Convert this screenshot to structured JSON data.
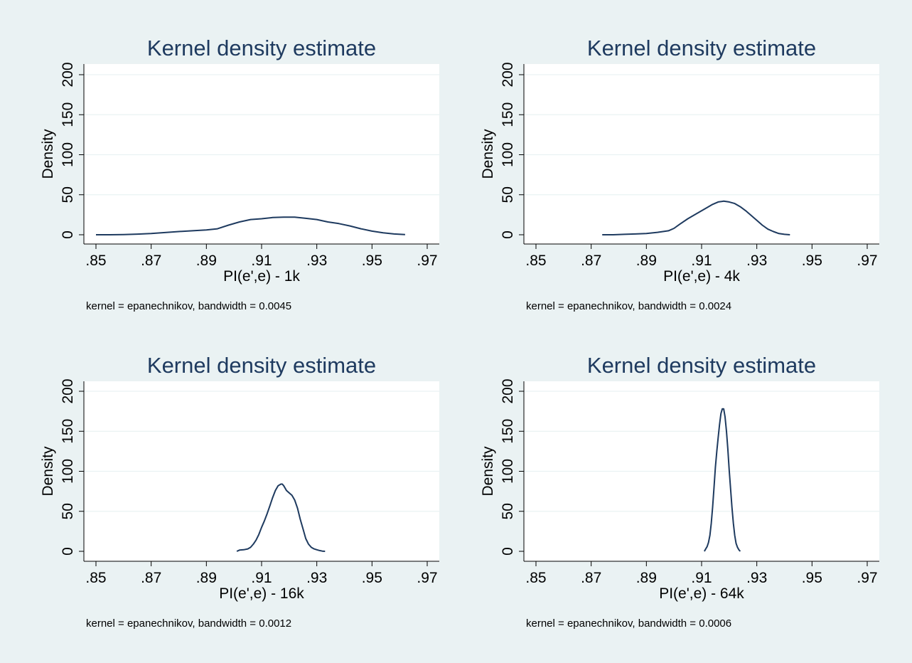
{
  "colors": {
    "background": "#eaf2f3",
    "plot_area": "#ffffff",
    "title": "#1e3a5f",
    "line": "#1e3a5f",
    "grid": "#eaf2f3",
    "text": "#000000"
  },
  "chart_data": [
    {
      "type": "line",
      "title": "Kernel density estimate",
      "xlabel": "PI(e',e) - 1k",
      "ylabel": "Density",
      "note": "kernel = epanechnikov, bandwidth = 0.0045",
      "xlim": [
        0.85,
        0.97
      ],
      "ylim": [
        0,
        200
      ],
      "xticks": [
        0.85,
        0.87,
        0.89,
        0.91,
        0.93,
        0.95,
        0.97
      ],
      "xtick_labels": [
        ".85",
        ".87",
        ".89",
        ".91",
        ".93",
        ".95",
        ".97"
      ],
      "yticks": [
        0,
        50,
        100,
        150,
        200
      ],
      "ytick_labels": [
        "0",
        "50",
        "100",
        "150",
        "200"
      ],
      "grid": true,
      "series": [
        {
          "x": [
            0.85,
            0.855,
            0.86,
            0.865,
            0.87,
            0.875,
            0.88,
            0.885,
            0.89,
            0.894,
            0.898,
            0.902,
            0.906,
            0.91,
            0.914,
            0.918,
            0.922,
            0.926,
            0.93,
            0.934,
            0.938,
            0.942,
            0.946,
            0.95,
            0.954,
            0.958,
            0.962
          ],
          "y": [
            0,
            0,
            0.3,
            0.8,
            1.5,
            2.8,
            4,
            5,
            6,
            7.5,
            12,
            16,
            19,
            20,
            21.5,
            22,
            22,
            20.5,
            19,
            16,
            14,
            11,
            7.5,
            4.5,
            2.5,
            1,
            0.3
          ]
        }
      ]
    },
    {
      "type": "line",
      "title": "Kernel density estimate",
      "xlabel": "PI(e',e) - 4k",
      "ylabel": "Density",
      "note": "kernel = epanechnikov, bandwidth = 0.0024",
      "xlim": [
        0.85,
        0.97
      ],
      "ylim": [
        0,
        200
      ],
      "xticks": [
        0.85,
        0.87,
        0.89,
        0.91,
        0.93,
        0.95,
        0.97
      ],
      "xtick_labels": [
        ".85",
        ".87",
        ".89",
        ".91",
        ".93",
        ".95",
        ".97"
      ],
      "yticks": [
        0,
        50,
        100,
        150,
        200
      ],
      "ytick_labels": [
        "0",
        "50",
        "100",
        "150",
        "200"
      ],
      "grid": true,
      "series": [
        {
          "x": [
            0.874,
            0.878,
            0.882,
            0.886,
            0.89,
            0.894,
            0.898,
            0.9,
            0.902,
            0.905,
            0.908,
            0.911,
            0.914,
            0.916,
            0.918,
            0.92,
            0.922,
            0.924,
            0.926,
            0.928,
            0.93,
            0.932,
            0.934,
            0.936,
            0.938,
            0.94,
            0.942
          ],
          "y": [
            0,
            0,
            0.5,
            1,
            1.5,
            3,
            5,
            8,
            13,
            20,
            26,
            32,
            38,
            41,
            42,
            41,
            39,
            35,
            30,
            24,
            18,
            12,
            7,
            4,
            1.5,
            0.5,
            0
          ]
        }
      ]
    },
    {
      "type": "line",
      "title": "Kernel density estimate",
      "xlabel": "PI(e',e) - 16k",
      "ylabel": "Density",
      "note": "kernel = epanechnikov, bandwidth = 0.0012",
      "xlim": [
        0.85,
        0.97
      ],
      "ylim": [
        0,
        200
      ],
      "xticks": [
        0.85,
        0.87,
        0.89,
        0.91,
        0.93,
        0.95,
        0.97
      ],
      "xtick_labels": [
        ".85",
        ".87",
        ".89",
        ".91",
        ".93",
        ".95",
        ".97"
      ],
      "yticks": [
        0,
        50,
        100,
        150,
        200
      ],
      "ytick_labels": [
        "0",
        "50",
        "100",
        "150",
        "200"
      ],
      "grid": true,
      "series": [
        {
          "x": [
            0.901,
            0.902,
            0.9035,
            0.905,
            0.906,
            0.907,
            0.908,
            0.909,
            0.91,
            0.911,
            0.912,
            0.913,
            0.914,
            0.915,
            0.916,
            0.917,
            0.9175,
            0.918,
            0.919,
            0.92,
            0.921,
            0.922,
            0.923,
            0.924,
            0.925,
            0.926,
            0.927,
            0.928,
            0.929,
            0.93,
            0.931,
            0.932,
            0.933
          ],
          "y": [
            0,
            1.5,
            2,
            3,
            5,
            9,
            14,
            21,
            30,
            38,
            47,
            57,
            67,
            76,
            82,
            84,
            84,
            82,
            76,
            73,
            70,
            64,
            54,
            40,
            28,
            16,
            9,
            5,
            3,
            2,
            1,
            0.3,
            0
          ]
        }
      ]
    },
    {
      "type": "line",
      "title": "Kernel density estimate",
      "xlabel": "PI(e',e) - 64k",
      "ylabel": "Density",
      "note": "kernel = epanechnikov, bandwidth = 0.0006",
      "xlim": [
        0.85,
        0.97
      ],
      "ylim": [
        0,
        200
      ],
      "xticks": [
        0.85,
        0.87,
        0.89,
        0.91,
        0.93,
        0.95,
        0.97
      ],
      "xtick_labels": [
        ".85",
        ".87",
        ".89",
        ".91",
        ".93",
        ".95",
        ".97"
      ],
      "yticks": [
        0,
        50,
        100,
        150,
        200
      ],
      "ytick_labels": [
        "0",
        "50",
        "100",
        "150",
        "200"
      ],
      "grid": true,
      "series": [
        {
          "x": [
            0.911,
            0.9115,
            0.912,
            0.9125,
            0.913,
            0.9135,
            0.914,
            0.9145,
            0.915,
            0.9155,
            0.916,
            0.9165,
            0.917,
            0.9175,
            0.918,
            0.9185,
            0.919,
            0.9195,
            0.92,
            0.9205,
            0.921,
            0.9215,
            0.922,
            0.9225,
            0.923,
            0.9235,
            0.924
          ],
          "y": [
            0,
            3,
            6,
            11,
            20,
            35,
            55,
            80,
            105,
            125,
            142,
            158,
            172,
            178,
            178,
            168,
            150,
            128,
            102,
            78,
            55,
            35,
            20,
            10,
            5,
            2,
            0
          ]
        }
      ]
    }
  ]
}
